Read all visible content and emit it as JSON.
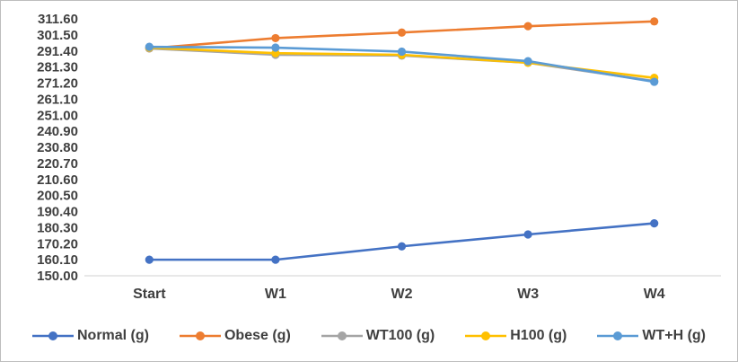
{
  "chart_data": {
    "type": "line",
    "title": "",
    "xlabel": "",
    "ylabel": "",
    "categories": [
      "Start",
      "W1",
      "W2",
      "W3",
      "W4"
    ],
    "series": [
      {
        "name": "Normal (g)",
        "color": "#4472C4",
        "values": [
          160.1,
          160.1,
          168.5,
          176.0,
          183.0
        ]
      },
      {
        "name": "Obese (g)",
        "color": "#ED7D31",
        "values": [
          293.0,
          299.5,
          303.0,
          307.0,
          310.0
        ]
      },
      {
        "name": "WT100 (g)",
        "color": "#A5A5A5",
        "values": [
          293.0,
          289.0,
          288.5,
          284.0,
          272.5
        ]
      },
      {
        "name": "H100 (g)",
        "color": "#FFC000",
        "values": [
          293.5,
          290.0,
          289.0,
          284.0,
          274.5
        ]
      },
      {
        "name": "WT+H (g)",
        "color": "#5B9BD5",
        "values": [
          294.0,
          293.5,
          291.0,
          285.0,
          272.0
        ]
      }
    ],
    "ylim": [
      150.0,
      311.6
    ],
    "ytick_step": 10.1,
    "yticks": [
      "311.60",
      "301.50",
      "291.40",
      "281.30",
      "271.20",
      "261.10",
      "251.00",
      "240.90",
      "230.80",
      "220.70",
      "210.60",
      "200.50",
      "190.40",
      "180.30",
      "170.20",
      "160.10",
      "150.00"
    ],
    "grid": false,
    "legend_position": "bottom"
  },
  "style": {
    "axis_line_color": "#d9d9d9",
    "text_color": "#3f3f3f",
    "background": "#ffffff"
  }
}
